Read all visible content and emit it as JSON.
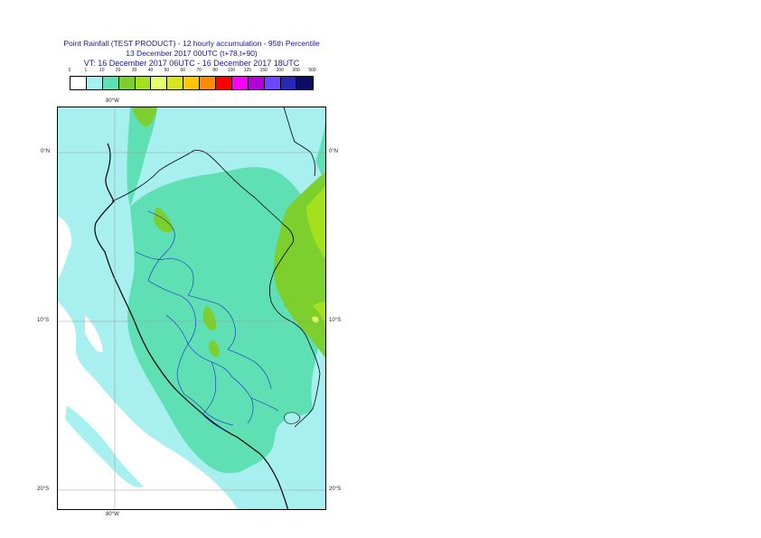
{
  "title": {
    "line1": "Point Rainfall (TEST PRODUCT) - 12 hourly accumulation - 95th Percentile",
    "line2": "13 December 2017 00UTC (t+78,t+90)",
    "line3": "VT: 16 December 2017 06UTC - 16 December 2017 18UTC"
  },
  "legend": {
    "labels": [
      "0",
      "1",
      "10",
      "20",
      "30",
      "40",
      "50",
      "60",
      "70",
      "80",
      "100",
      "125",
      "150",
      "200",
      "300",
      "500"
    ],
    "colors": [
      "#ffffff",
      "#a8f0f0",
      "#5fe0b4",
      "#7ccf2c",
      "#a4e01c",
      "#e4ff6c",
      "#d8e41c",
      "#ffc800",
      "#ff8c00",
      "#ff0000",
      "#ff00ff",
      "#b400d8",
      "#6e46ff",
      "#2828b4",
      "#0c0c60"
    ]
  },
  "axes": {
    "lon_top": "80°W",
    "lon_bottom": "80°W",
    "lat_left": [
      "0°N",
      "10°S",
      "20°S"
    ],
    "lat_right": [
      "0°N",
      "10°S",
      "20°S"
    ]
  }
}
